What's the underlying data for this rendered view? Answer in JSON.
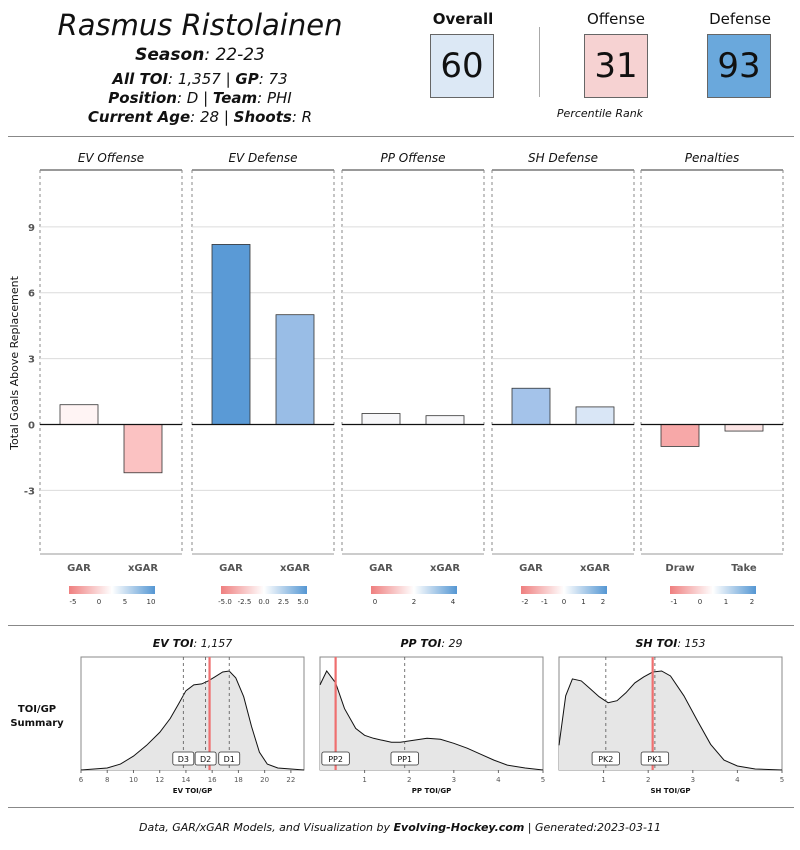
{
  "player": {
    "name": "Rasmus Ristolainen",
    "season_label": "Season",
    "season": ": 22-23",
    "toi_label": "All TOI",
    "toi": ": 1,357 | ",
    "gp_label": "GP",
    "gp": ": 73",
    "position_label": "Position",
    "position": ": D | ",
    "team_label": "Team",
    "team": ": PHI",
    "age_label": "Current Age",
    "age": ": 28 | ",
    "shoots_label": "Shoots",
    "shoots": ": R"
  },
  "ranks": {
    "overall_label": "Overall",
    "overall": "60",
    "offense_label": "Offense",
    "offense": "31",
    "defense_label": "Defense",
    "defense": "93",
    "caption": "Percentile Rank",
    "colors": {
      "overall": "#dce8f5",
      "offense": "#f6d2d2",
      "defense": "#6aa8dc"
    }
  },
  "chart_data": [
    {
      "type": "bar",
      "ylabel": "Total Goals Above Replacement",
      "yticks": [
        -3,
        0,
        3,
        6,
        9
      ],
      "ylim": [
        -5.9,
        11.5
      ],
      "panels": [
        {
          "title": "EV Offense",
          "categories": [
            "GAR",
            "xGAR"
          ],
          "values": [
            0.9,
            -2.2
          ],
          "colors": [
            "#fff4f4",
            "#fbc2c2"
          ],
          "legend_ticks": [
            "-5",
            "0",
            "5",
            "10"
          ]
        },
        {
          "title": "EV Defense",
          "categories": [
            "GAR",
            "xGAR"
          ],
          "values": [
            8.2,
            5.0
          ],
          "colors": [
            "#5a9ad6",
            "#99bde6"
          ],
          "legend_ticks": [
            "-5.0",
            "-2.5",
            "0.0",
            "2.5",
            "5.0"
          ]
        },
        {
          "title": "PP Offense",
          "categories": [
            "GAR",
            "xGAR"
          ],
          "values": [
            0.5,
            0.4
          ],
          "colors": [
            "#f7f7f9",
            "#f7f7f9"
          ],
          "legend_ticks": [
            "0",
            "2",
            "4"
          ]
        },
        {
          "title": "SH Defense",
          "categories": [
            "GAR",
            "xGAR"
          ],
          "values": [
            1.65,
            0.8
          ],
          "colors": [
            "#a4c3ea",
            "#d9e6f6"
          ],
          "legend_ticks": [
            "-2",
            "-1",
            "0",
            "1",
            "2"
          ]
        },
        {
          "title": "Penalties",
          "categories": [
            "Draw",
            "Take"
          ],
          "values": [
            -1.0,
            -0.3
          ],
          "colors": [
            "#f7a8a8",
            "#fbe4e4"
          ],
          "legend_ticks": [
            "-1",
            "0",
            "1",
            "2"
          ]
        }
      ]
    },
    {
      "type": "area",
      "row_label": "TOI/GP Summary",
      "panels": [
        {
          "title_label": "EV TOI",
          "title_value": ": 1,157",
          "xlabel": "EV TOI/GP",
          "xlim": [
            6,
            23
          ],
          "xticks": [
            6,
            8,
            10,
            12,
            14,
            16,
            18,
            20,
            22
          ],
          "player_value": 15.8,
          "markers": [
            {
              "label": "D3",
              "x": 13.8
            },
            {
              "label": "D2",
              "x": 15.5
            },
            {
              "label": "D1",
              "x": 17.3
            }
          ],
          "density_x": [
            6,
            8,
            9,
            10,
            11,
            12,
            12.8,
            13.4,
            14,
            14.6,
            15.2,
            15.7,
            16.2,
            16.8,
            17.3,
            17.8,
            18.4,
            19,
            19.6,
            20.2,
            21,
            22,
            23
          ],
          "density_y": [
            0.0,
            0.02,
            0.06,
            0.14,
            0.25,
            0.38,
            0.52,
            0.66,
            0.8,
            0.86,
            0.87,
            0.9,
            0.94,
            0.99,
            1.0,
            0.93,
            0.74,
            0.44,
            0.18,
            0.06,
            0.02,
            0.01,
            0.0
          ]
        },
        {
          "title_label": "PP TOI",
          "title_value": ": 29",
          "xlabel": "PP TOI/GP",
          "xlim": [
            0,
            5
          ],
          "xticks": [
            1,
            2,
            3,
            4,
            5
          ],
          "player_value": 0.35,
          "markers": [
            {
              "label": "PP2",
              "x": 0.35
            },
            {
              "label": "PP1",
              "x": 1.9
            }
          ],
          "density_x": [
            0,
            0.15,
            0.35,
            0.55,
            0.8,
            1.0,
            1.2,
            1.4,
            1.6,
            1.8,
            2.1,
            2.4,
            2.7,
            3.0,
            3.3,
            3.6,
            3.9,
            4.2,
            4.6,
            5.0
          ],
          "density_y": [
            0.86,
            1.0,
            0.88,
            0.62,
            0.42,
            0.35,
            0.32,
            0.3,
            0.28,
            0.28,
            0.3,
            0.32,
            0.31,
            0.27,
            0.22,
            0.16,
            0.1,
            0.05,
            0.02,
            0.0
          ]
        },
        {
          "title_label": "SH TOI",
          "title_value": ": 153",
          "xlabel": "SH TOI/GP",
          "xlim": [
            0,
            5
          ],
          "xticks": [
            1,
            2,
            3,
            4,
            5
          ],
          "player_value": 2.1,
          "markers": [
            {
              "label": "PK2",
              "x": 1.05
            },
            {
              "label": "PK1",
              "x": 2.15
            }
          ],
          "density_x": [
            0,
            0.15,
            0.3,
            0.5,
            0.7,
            0.9,
            1.1,
            1.3,
            1.5,
            1.7,
            1.9,
            2.1,
            2.3,
            2.5,
            2.8,
            3.1,
            3.4,
            3.7,
            4.0,
            4.4,
            5.0
          ],
          "density_y": [
            0.25,
            0.75,
            0.92,
            0.9,
            0.82,
            0.74,
            0.68,
            0.7,
            0.78,
            0.88,
            0.94,
            0.99,
            1.0,
            0.95,
            0.75,
            0.5,
            0.26,
            0.1,
            0.04,
            0.01,
            0.0
          ]
        }
      ]
    }
  ],
  "footer": {
    "prefix": "Data, GAR/xGAR Models, and Visualization by ",
    "brand": "Evolving-Hockey.com",
    "suffix": " | Generated:2023-03-11"
  }
}
